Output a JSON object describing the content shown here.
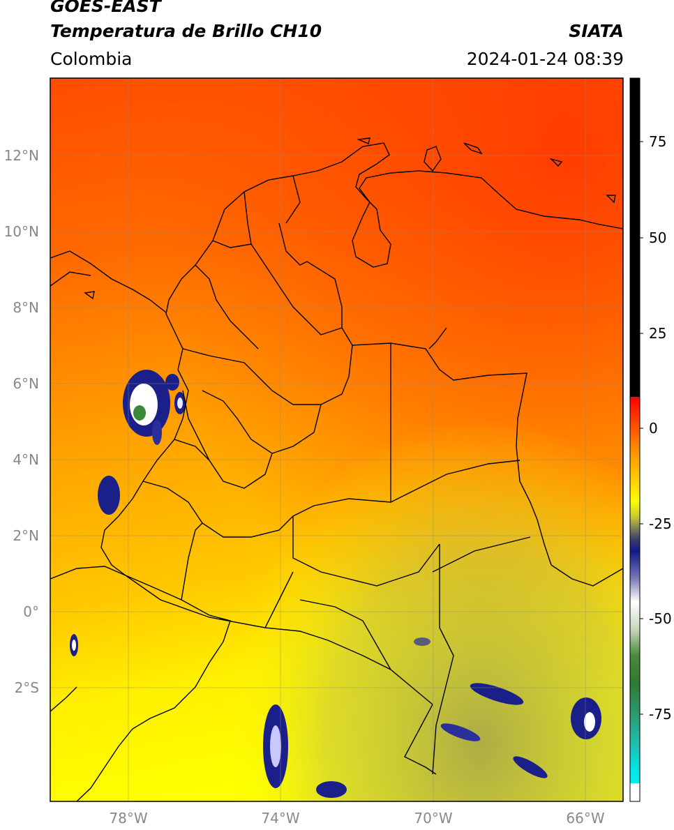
{
  "header": {
    "line1": "GOES-EAST",
    "line2": "Temperatura de Brillo CH10",
    "region": "Colombia",
    "organization": "SIATA",
    "timestamp": "2024-01-24 08:39"
  },
  "map": {
    "lat_labels": [
      "12°N",
      "10°N",
      "8°N",
      "6°N",
      "4°N",
      "2°N",
      "0°",
      "2°S"
    ],
    "lon_labels": [
      "78°W",
      "74°W",
      "70°W",
      "66°W"
    ]
  },
  "colorbar": {
    "ticks": [
      "75",
      "50",
      "25",
      "0",
      "-25",
      "-50",
      "-75"
    ],
    "colors": {
      "warm": "#ff2a00",
      "orange": "#ff8a00",
      "yellow": "#ffff00",
      "olive": "#b8b84a",
      "navy": "#1a1f8a",
      "white": "#ffffff",
      "green": "#2f8a2f",
      "cyan": "#00e5e5",
      "black": "#000000"
    }
  }
}
